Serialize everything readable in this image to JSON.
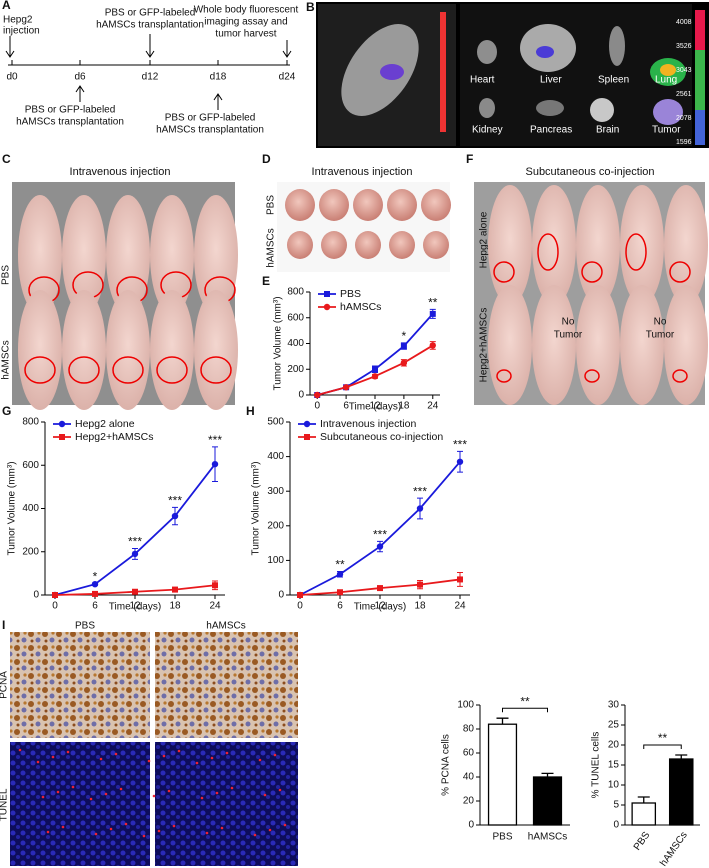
{
  "panel_labels": [
    "A",
    "B",
    "C",
    "D",
    "E",
    "F",
    "G",
    "H",
    "I"
  ],
  "timeline": {
    "start": [
      "Hepg2",
      "injection"
    ],
    "days": [
      "d0",
      "d6",
      "d12",
      "d18",
      "d24"
    ],
    "above_d12": [
      "PBS or GFP-labeled",
      "hAMSCs transplantation"
    ],
    "above_d24": [
      "Whole body fluorescent",
      "imaging assay and",
      "tumor harvest"
    ],
    "below_d6": [
      "PBS or GFP-labeled",
      "hAMSCs transplantation"
    ],
    "below_d18": [
      "PBS or GFP-labeled",
      "hAMSCs transplantation"
    ]
  },
  "imaging": {
    "organs": [
      "Heart",
      "Liver",
      "Spleen",
      "Lung",
      "Kidney",
      "Pancreas",
      "Brain",
      "Tumor"
    ],
    "scale": [
      4008,
      3526,
      3043,
      2561,
      2078,
      1596
    ]
  },
  "photo_c": {
    "title": "Intravenous injection",
    "rows": [
      "PBS",
      "hAMSCs"
    ]
  },
  "photo_d": {
    "title": "Intravenous injection",
    "rows": [
      "PBS",
      "hAMSCs"
    ]
  },
  "photo_f": {
    "title": "Subcutaneous co-injection",
    "rows": [
      "Hepg2 alone",
      "Hepg2+hAMSCs"
    ],
    "notes": [
      [
        "No",
        "Tumor"
      ],
      [
        "No",
        "Tumor"
      ]
    ]
  },
  "histology": {
    "columns": [
      "PBS",
      "hAMSCs"
    ],
    "rows": [
      "PCNA",
      "TUNEL"
    ]
  },
  "chart_data": [
    {
      "type": "line",
      "x_label": "Time (days)",
      "y_label": "Tumor Volume (mm³)",
      "x": [
        0,
        6,
        12,
        18,
        24
      ],
      "xlim": [
        -1.5,
        25.5
      ],
      "xticks": [
        0,
        6,
        12,
        18,
        24
      ],
      "ylim": [
        0,
        800
      ],
      "yticks": [
        0,
        200,
        400,
        600,
        800
      ],
      "series": [
        {
          "name": "PBS",
          "color": "#1a1adb",
          "marker": "square",
          "values": [
            0,
            60,
            200,
            380,
            630
          ],
          "errors": [
            5,
            5,
            25,
            25,
            35
          ]
        },
        {
          "name": "hAMSCs",
          "color": "#e8191c",
          "marker": "circle",
          "values": [
            0,
            60,
            145,
            250,
            385
          ],
          "errors": [
            5,
            5,
            15,
            25,
            30
          ]
        }
      ],
      "annotations": [
        {
          "x": 18,
          "text": "*"
        },
        {
          "x": 24,
          "text": "**"
        }
      ]
    },
    {
      "type": "line",
      "x_label": "Time (days)",
      "y_label": "Tumor Volume (mm³)",
      "x": [
        0,
        6,
        12,
        18,
        24
      ],
      "xlim": [
        -1.5,
        25.5
      ],
      "xticks": [
        0,
        6,
        12,
        18,
        24
      ],
      "ylim": [
        0,
        800
      ],
      "yticks": [
        0,
        200,
        400,
        600,
        800
      ],
      "series": [
        {
          "name": "Hepg2 alone",
          "color": "#1a1adb",
          "marker": "circle",
          "values": [
            0,
            50,
            190,
            365,
            605
          ],
          "errors": [
            2,
            5,
            25,
            40,
            80
          ]
        },
        {
          "name": "Hepg2+hAMSCs",
          "color": "#e8191c",
          "marker": "square",
          "values": [
            0,
            5,
            15,
            25,
            45
          ],
          "errors": [
            1,
            3,
            5,
            10,
            20
          ]
        }
      ],
      "annotations": [
        {
          "x": 6,
          "text": "*"
        },
        {
          "x": 12,
          "text": "***"
        },
        {
          "x": 18,
          "text": "***"
        },
        {
          "x": 24,
          "text": "***"
        }
      ]
    },
    {
      "type": "line",
      "x_label": "Time (days)",
      "y_label": "Tumor Volume (mm³)",
      "x": [
        0,
        6,
        12,
        18,
        24
      ],
      "xlim": [
        -1.5,
        25.5
      ],
      "xticks": [
        0,
        6,
        12,
        18,
        24
      ],
      "ylim": [
        0,
        500
      ],
      "yticks": [
        0,
        100,
        200,
        300,
        400,
        500
      ],
      "series": [
        {
          "name": "Intravenous injection",
          "color": "#1a1adb",
          "marker": "circle",
          "values": [
            0,
            60,
            140,
            250,
            385
          ],
          "errors": [
            2,
            8,
            15,
            30,
            30
          ]
        },
        {
          "name": "Subcutaneous co-injection",
          "color": "#e8191c",
          "marker": "square",
          "values": [
            0,
            8,
            20,
            30,
            45
          ],
          "errors": [
            1,
            3,
            5,
            12,
            20
          ]
        }
      ],
      "annotations": [
        {
          "x": 6,
          "text": "**"
        },
        {
          "x": 12,
          "text": "***"
        },
        {
          "x": 18,
          "text": "***"
        },
        {
          "x": 24,
          "text": "***"
        }
      ]
    },
    {
      "type": "bar",
      "y_label": "% PCNA cells",
      "categories": [
        "PBS",
        "hAMSCs"
      ],
      "values": [
        84,
        40
      ],
      "errors": [
        5,
        3
      ],
      "colors": [
        "#ffffff",
        "#000000"
      ],
      "ylim": [
        0,
        100
      ],
      "yticks": [
        0,
        20,
        40,
        60,
        80,
        100
      ],
      "significance": "**"
    },
    {
      "type": "bar",
      "y_label": "% TUNEL cells",
      "categories": [
        "PBS",
        "hAMSCs"
      ],
      "values": [
        5.5,
        16.5
      ],
      "errors": [
        1.5,
        1
      ],
      "colors": [
        "#ffffff",
        "#000000"
      ],
      "ylim": [
        0,
        30
      ],
      "yticks": [
        0,
        5,
        10,
        15,
        20,
        25,
        30
      ],
      "significance": "**"
    }
  ]
}
